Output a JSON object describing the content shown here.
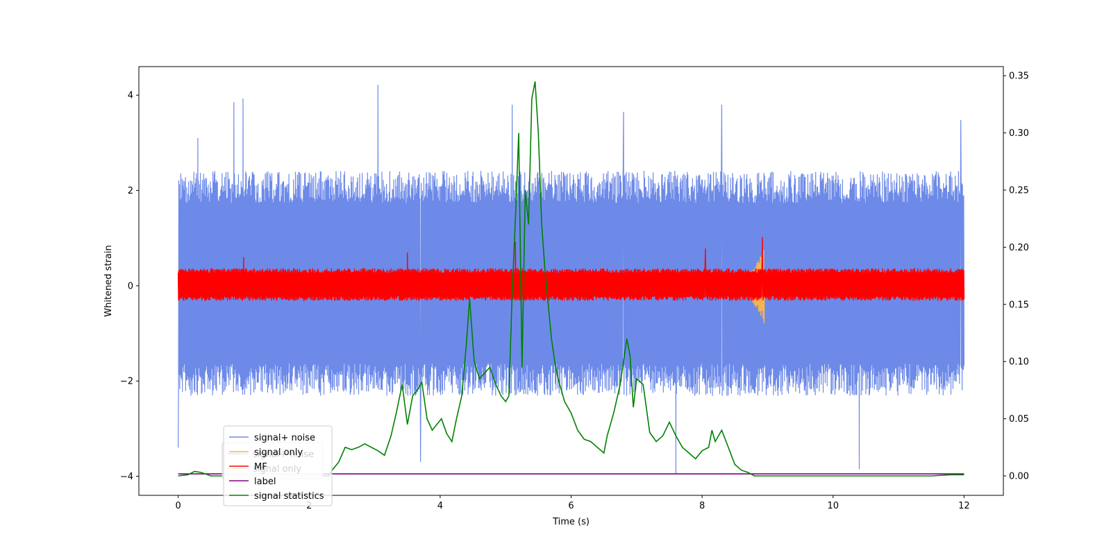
{
  "chart_data": {
    "type": "line",
    "title": "",
    "xlabel": "Time (s)",
    "ylabel": "Whitened strain",
    "y2label": "",
    "xlim": [
      -0.6,
      12.6
    ],
    "ylim": [
      -4.4,
      4.6
    ],
    "y2lim": [
      -0.017,
      0.358
    ],
    "x_ticks": [
      0,
      2,
      4,
      6,
      8,
      10,
      12
    ],
    "y_ticks": [
      -4,
      -2,
      0,
      2,
      4
    ],
    "y2_ticks": [
      0.0,
      0.05,
      0.1,
      0.15,
      0.2,
      0.25,
      0.3,
      0.35
    ],
    "x_tick_labels": [
      "0",
      "2",
      "4",
      "6",
      "8",
      "10",
      "12"
    ],
    "y_tick_labels": [
      "−4",
      "−2",
      "0",
      "2",
      "4"
    ],
    "y2_tick_labels": [
      "0.00",
      "0.05",
      "0.10",
      "0.15",
      "0.20",
      "0.25",
      "0.30",
      "0.35"
    ],
    "grid": false,
    "legend_position": "lower-left",
    "series": [
      {
        "name": "signal+ noise",
        "color": "#6d8ae8",
        "axis": "left",
        "kind": "noise-band",
        "x_range": [
          0,
          12
        ],
        "typical_range": [
          -2.2,
          2.3
        ],
        "peaks": [
          {
            "x": 0.0,
            "y": -3.4
          },
          {
            "x": 0.3,
            "y": 3.1
          },
          {
            "x": 0.85,
            "y": 3.85
          },
          {
            "x": 0.99,
            "y": 3.93
          },
          {
            "x": 3.05,
            "y": 4.22
          },
          {
            "x": 3.7,
            "y": -3.7
          },
          {
            "x": 5.1,
            "y": 3.8
          },
          {
            "x": 6.8,
            "y": 3.65
          },
          {
            "x": 7.6,
            "y": -3.95
          },
          {
            "x": 8.3,
            "y": 3.8
          },
          {
            "x": 10.4,
            "y": -3.85
          },
          {
            "x": 11.95,
            "y": 3.48
          }
        ]
      },
      {
        "name": "signal only",
        "color": "#f5b454",
        "axis": "left",
        "kind": "chirp",
        "x_range": [
          8.2,
          8.95
        ],
        "amplitude_end": 0.8
      },
      {
        "name": "MF",
        "color": "#ff0000",
        "axis": "left",
        "kind": "noise-band",
        "x_range": [
          0,
          12
        ],
        "typical_range": [
          -0.3,
          0.35
        ],
        "peaks": [
          {
            "x": 5.15,
            "y": 0.92
          },
          {
            "x": 8.92,
            "y": 1.02
          },
          {
            "x": 8.05,
            "y": 0.78
          },
          {
            "x": 3.5,
            "y": 0.7
          },
          {
            "x": 1.0,
            "y": 0.6
          }
        ]
      },
      {
        "name": "label",
        "color": "#800080",
        "axis": "left",
        "x": [
          0,
          12
        ],
        "values": [
          -3.95,
          -3.95
        ]
      },
      {
        "name": "signal statistics",
        "color": "#008000",
        "axis": "right",
        "x": [
          0.0,
          0.15,
          0.25,
          0.35,
          0.5,
          0.7,
          0.9,
          1.1,
          1.3,
          1.5,
          1.7,
          1.9,
          2.1,
          2.2,
          2.3,
          2.35,
          2.45,
          2.55,
          2.65,
          2.75,
          2.85,
          2.95,
          3.05,
          3.15,
          3.25,
          3.33,
          3.42,
          3.5,
          3.58,
          3.65,
          3.72,
          3.8,
          3.88,
          3.95,
          4.02,
          4.1,
          4.18,
          4.25,
          4.33,
          4.4,
          4.45,
          4.52,
          4.6,
          4.68,
          4.76,
          4.85,
          4.93,
          5.0,
          5.05,
          5.1,
          5.15,
          5.2,
          5.25,
          5.3,
          5.35,
          5.4,
          5.45,
          5.5,
          5.55,
          5.6,
          5.65,
          5.7,
          5.75,
          5.8,
          5.85,
          5.9,
          6.0,
          6.1,
          6.2,
          6.3,
          6.4,
          6.5,
          6.55,
          6.65,
          6.75,
          6.85,
          6.9,
          6.95,
          7.0,
          7.1,
          7.2,
          7.3,
          7.4,
          7.5,
          7.6,
          7.7,
          7.8,
          7.9,
          8.0,
          8.1,
          8.15,
          8.2,
          8.3,
          8.4,
          8.5,
          8.6,
          8.7,
          8.8,
          9.0,
          9.5,
          10.0,
          10.5,
          11.0,
          11.5,
          11.8,
          12.0
        ],
        "values": [
          0.0,
          0.001,
          0.004,
          0.003,
          0.0,
          0.0,
          0.0,
          0.0,
          0.0,
          0.0,
          0.0,
          0.0,
          0.0,
          0.0,
          0.0,
          0.005,
          0.012,
          0.025,
          0.023,
          0.025,
          0.028,
          0.025,
          0.022,
          0.018,
          0.035,
          0.055,
          0.08,
          0.045,
          0.07,
          0.075,
          0.082,
          0.05,
          0.04,
          0.045,
          0.05,
          0.037,
          0.03,
          0.05,
          0.07,
          0.115,
          0.155,
          0.1,
          0.085,
          0.09,
          0.095,
          0.08,
          0.07,
          0.065,
          0.07,
          0.16,
          0.225,
          0.3,
          0.095,
          0.25,
          0.22,
          0.33,
          0.345,
          0.3,
          0.22,
          0.18,
          0.15,
          0.12,
          0.1,
          0.085,
          0.075,
          0.065,
          0.055,
          0.04,
          0.032,
          0.03,
          0.025,
          0.02,
          0.035,
          0.055,
          0.08,
          0.12,
          0.105,
          0.06,
          0.085,
          0.08,
          0.038,
          0.03,
          0.035,
          0.047,
          0.035,
          0.025,
          0.02,
          0.015,
          0.022,
          0.025,
          0.04,
          0.03,
          0.04,
          0.025,
          0.01,
          0.005,
          0.003,
          0.0,
          0.0,
          0.0,
          0.0,
          0.0,
          0.0,
          0.0,
          0.001,
          0.001
        ]
      }
    ],
    "legend_overlap_entries": [
      "signal+ noise",
      "signal only"
    ]
  }
}
